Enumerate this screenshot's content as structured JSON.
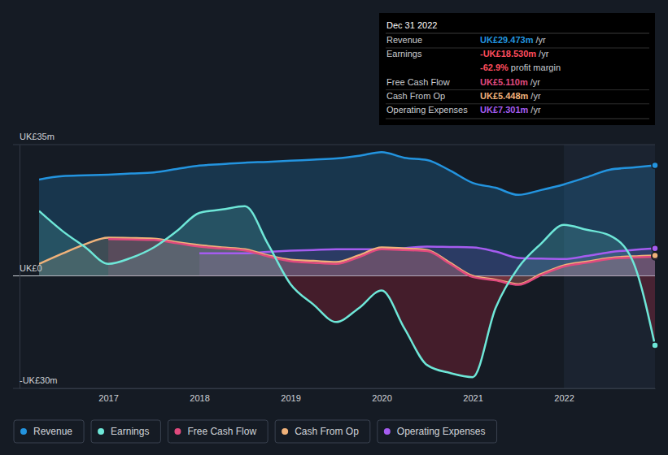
{
  "chart_data": {
    "type": "line",
    "x": [
      2016.24,
      2016.5,
      2016.75,
      2017,
      2017.25,
      2017.5,
      2017.75,
      2018,
      2018.25,
      2018.5,
      2018.75,
      2019,
      2019.25,
      2019.5,
      2019.75,
      2020,
      2020.25,
      2020.5,
      2020.75,
      2021,
      2021.25,
      2021.5,
      2021.75,
      2022,
      2022.25,
      2022.5,
      2022.75,
      2023.0
    ],
    "xlim": [
      2016.24,
      2023.0
    ],
    "xticks": [
      2017,
      2018,
      2019,
      2020,
      2021,
      2022
    ],
    "ylim": [
      -30,
      35
    ],
    "yticks": [
      {
        "value": -30,
        "label": "-UK£30m"
      },
      {
        "value": 0,
        "label": "UK£0"
      },
      {
        "value": 35,
        "label": "UK£35m"
      }
    ],
    "grid": true,
    "legend": "bottom-left",
    "series": [
      {
        "name": "Revenue",
        "color": "#2394df",
        "values": [
          25.7,
          26.6,
          26.8,
          27.0,
          27.3,
          27.6,
          28.5,
          29.4,
          29.8,
          30.2,
          30.4,
          30.7,
          31.0,
          31.3,
          32.0,
          33.0,
          31.5,
          30.9,
          28.1,
          24.8,
          23.5,
          21.6,
          22.9,
          24.4,
          26.3,
          28.3,
          28.9,
          29.47
        ]
      },
      {
        "name": "Earnings",
        "color": "#6ee7d8",
        "values": [
          17.3,
          11.9,
          7.6,
          3.2,
          4.8,
          7.6,
          11.9,
          16.8,
          17.7,
          18.6,
          8.6,
          -2.2,
          -7.6,
          -12.3,
          -8.6,
          -3.9,
          -14.0,
          -23.8,
          -25.9,
          -27.0,
          -8.6,
          2.2,
          8.6,
          13.6,
          12.3,
          10.8,
          4.3,
          -18.53
        ]
      },
      {
        "name": "Free Cash Flow",
        "color": "#e04a7e",
        "values": [
          null,
          null,
          null,
          9.8,
          9.7,
          9.6,
          8.7,
          7.8,
          7.3,
          6.8,
          5.2,
          3.9,
          3.5,
          3.2,
          5.0,
          7.1,
          6.9,
          6.6,
          3.2,
          -0.3,
          -1.2,
          -2.4,
          0.2,
          2.5,
          3.5,
          4.5,
          4.9,
          5.11
        ]
      },
      {
        "name": "Cash From Op",
        "color": "#f0b27a",
        "values": [
          3.2,
          6.0,
          8.5,
          10.2,
          10.1,
          9.9,
          9.0,
          8.2,
          7.6,
          7.1,
          5.5,
          4.3,
          4.0,
          3.7,
          5.5,
          7.6,
          7.3,
          6.9,
          3.5,
          0.0,
          -1.0,
          -2.2,
          0.5,
          2.8,
          3.8,
          4.8,
          5.2,
          5.45
        ]
      },
      {
        "name": "Operating Expenses",
        "color": "#a55cf0",
        "values": [
          null,
          null,
          null,
          null,
          null,
          null,
          null,
          6.0,
          6.0,
          6.0,
          6.4,
          6.7,
          6.9,
          7.1,
          7.1,
          7.1,
          7.4,
          7.8,
          7.7,
          7.6,
          6.5,
          4.8,
          4.6,
          4.5,
          5.3,
          6.3,
          6.9,
          7.3
        ]
      }
    ],
    "tooltip": {
      "title": "Dec 31 2022",
      "rows": [
        {
          "label": "Revenue",
          "value": "UK£29.473m",
          "unit": "/yr",
          "color": "#2394df"
        },
        {
          "label": "Earnings",
          "value": "-UK£18.530m",
          "unit": "/yr",
          "color": "#ff4d5e"
        },
        {
          "value": "-62.9%",
          "unit": "profit margin",
          "color": "#ff4d5e"
        },
        {
          "label": "Free Cash Flow",
          "value": "UK£5.110m",
          "unit": "/yr",
          "color": "#e04a7e"
        },
        {
          "label": "Cash From Op",
          "value": "UK£5.448m",
          "unit": "/yr",
          "color": "#f0b27a"
        },
        {
          "label": "Operating Expenses",
          "value": "UK£7.301m",
          "unit": "/yr",
          "color": "#a55cf0"
        }
      ]
    }
  }
}
